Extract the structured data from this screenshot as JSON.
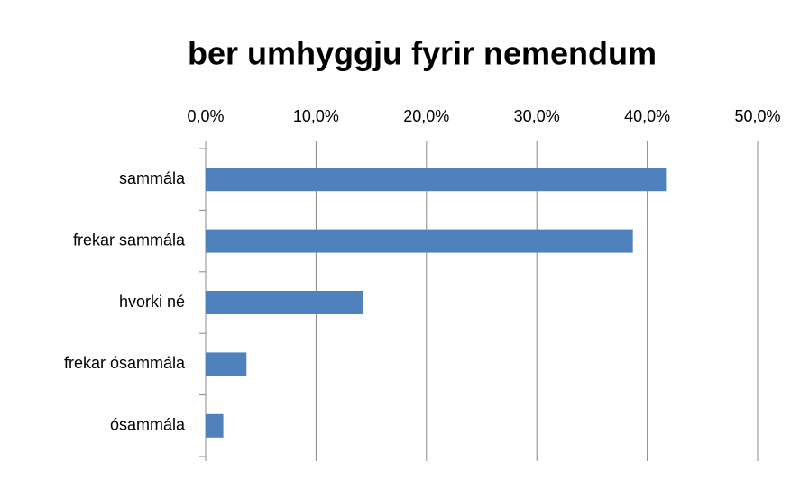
{
  "chart_data": {
    "type": "bar",
    "orientation": "horizontal",
    "title": "ber umhyggju fyrir nemendum",
    "categories": [
      "sammála",
      "frekar sammála",
      "hvorki né",
      "frekar ósammála",
      "ósammála"
    ],
    "values": [
      41.7,
      38.7,
      14.3,
      3.7,
      1.6
    ],
    "color": "#4f81bd",
    "xlim": [
      0,
      50
    ],
    "xticks": [
      {
        "value": 0,
        "label": "0,0%"
      },
      {
        "value": 10,
        "label": "10,0%"
      },
      {
        "value": 20,
        "label": "20,0%"
      },
      {
        "value": 30,
        "label": "30,0%"
      },
      {
        "value": 40,
        "label": "40,0%"
      },
      {
        "value": 50,
        "label": "50,0%"
      }
    ],
    "grid": true
  }
}
